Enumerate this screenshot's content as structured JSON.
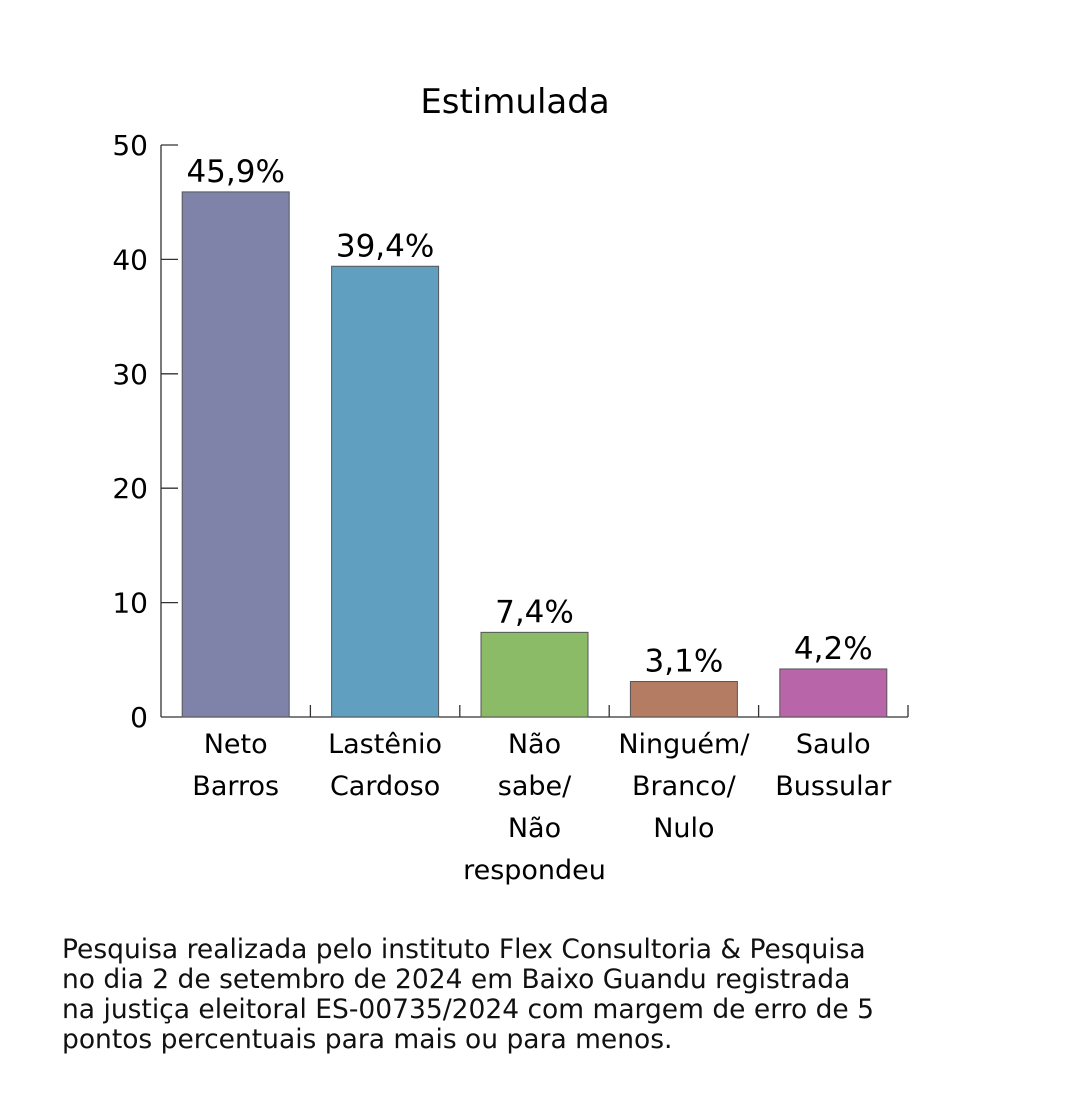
{
  "chart_data": {
    "type": "bar",
    "title": "Estimulada",
    "xlabel": "",
    "ylabel": "",
    "ylim": [
      0,
      50
    ],
    "yticks": [
      0,
      10,
      20,
      30,
      40,
      50
    ],
    "grid": false,
    "legend": "none",
    "categories": [
      [
        "Neto",
        "Barros"
      ],
      [
        "Lastênio",
        "Cardoso"
      ],
      [
        "Não",
        "sabe/",
        "Não",
        "respondeu"
      ],
      [
        "Ninguém/",
        "Branco/",
        "Nulo"
      ],
      [
        "Saulo",
        "Bussular"
      ]
    ],
    "values": [
      45.9,
      39.4,
      7.4,
      3.1,
      4.2
    ],
    "value_labels": [
      "45,9%",
      "39,4%",
      "7,4%",
      "3,1%",
      "4,2%"
    ],
    "colors": [
      "#8083a9",
      "#609fbf",
      "#8bbb66",
      "#b47c63",
      "#b865a9"
    ]
  },
  "footnote": [
    "Pesquisa realizada pelo instituto Flex Consultoria & Pesquisa",
    "no dia 2 de setembro de 2024 em Baixo Guandu registrada",
    "na justiça eleitoral ES-00735/2024 com margem de erro de 5",
    "pontos percentuais para mais ou para menos."
  ]
}
